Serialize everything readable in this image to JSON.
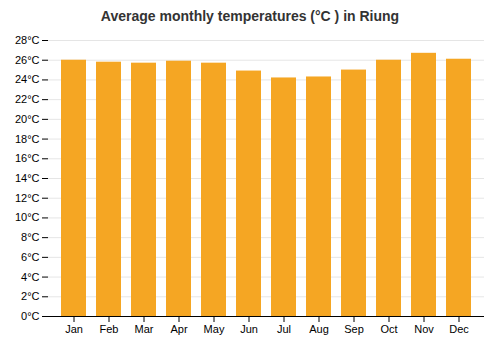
{
  "chart_data": {
    "type": "bar",
    "title": "Average monthly temperatures (°C ) in Riung",
    "categories": [
      "Jan",
      "Feb",
      "Mar",
      "Apr",
      "May",
      "Jun",
      "Jul",
      "Aug",
      "Sep",
      "Oct",
      "Nov",
      "Dec"
    ],
    "values": [
      26.0,
      25.8,
      25.7,
      25.9,
      25.7,
      24.9,
      24.2,
      24.3,
      25.0,
      26.0,
      26.7,
      26.1
    ],
    "color": "#F5A623",
    "ylim": [
      0,
      28
    ],
    "yticks": [
      {
        "value": 0,
        "label": "0°C"
      },
      {
        "value": 2,
        "label": "2°C"
      },
      {
        "value": 4,
        "label": "4°C"
      },
      {
        "value": 6,
        "label": "6°C"
      },
      {
        "value": 8,
        "label": "8°C"
      },
      {
        "value": 10,
        "label": "10°C"
      },
      {
        "value": 12,
        "label": "12°C"
      },
      {
        "value": 14,
        "label": "14°C"
      },
      {
        "value": 16,
        "label": "16°C"
      },
      {
        "value": 18,
        "label": "18°C"
      },
      {
        "value": 20,
        "label": "20°C"
      },
      {
        "value": 22,
        "label": "22°C"
      },
      {
        "value": 24,
        "label": "24°C"
      },
      {
        "value": 26,
        "label": "26°C"
      },
      {
        "value": 28,
        "label": "28°C"
      }
    ],
    "grid": true
  }
}
